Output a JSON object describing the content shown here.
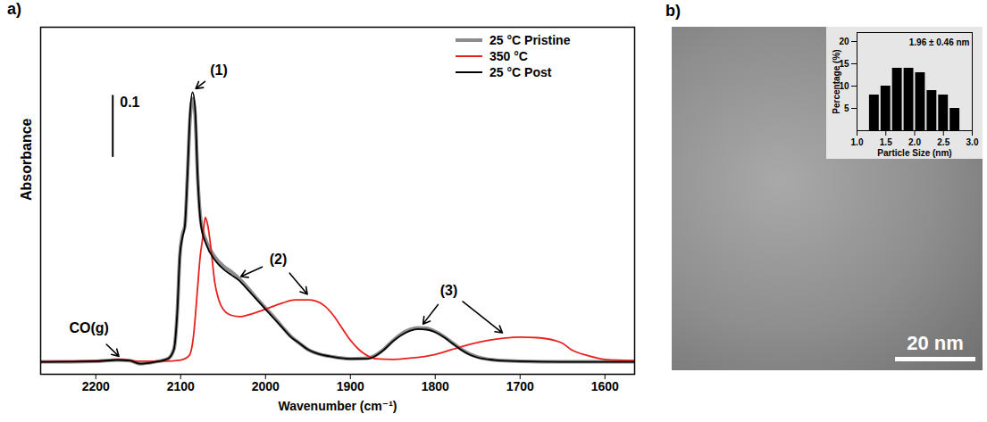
{
  "chart_data": [
    {
      "type": "line",
      "panel_label": "a)",
      "x_label": "Wavenumber (cm⁻¹)",
      "y_label": "Absorbance",
      "xlim": [
        2265,
        1565
      ],
      "xticks": [
        2200,
        2100,
        2000,
        1900,
        1800,
        1700,
        1600
      ],
      "ylim": [
        -0.02,
        0.54
      ],
      "yticks": [],
      "tick_labels": "x",
      "grid": false,
      "legend": "top-right",
      "series": [
        {
          "name": "25 °C Pristine",
          "color": "#8c8c8c",
          "x": [
            2265,
            2200,
            2175,
            2160,
            2148,
            2130,
            2115,
            2108,
            2104,
            2101,
            2098,
            2095,
            2092,
            2089,
            2086,
            2083,
            2080,
            2076,
            2070,
            2060,
            2050,
            2040,
            2030,
            2020,
            2010,
            2000,
            1990,
            1980,
            1970,
            1960,
            1950,
            1940,
            1920,
            1900,
            1880,
            1870,
            1860,
            1850,
            1840,
            1830,
            1820,
            1810,
            1800,
            1790,
            1780,
            1770,
            1760,
            1750,
            1730,
            1700,
            1650,
            1565
          ],
          "values": [
            0,
            0.001,
            0.003,
            0.002,
            -0.003,
            0,
            0.005,
            0.02,
            0.08,
            0.17,
            0.205,
            0.22,
            0.3,
            0.39,
            0.425,
            0.4,
            0.3,
            0.225,
            0.195,
            0.17,
            0.155,
            0.145,
            0.133,
            0.118,
            0.102,
            0.087,
            0.072,
            0.056,
            0.041,
            0.03,
            0.02,
            0.014,
            0.008,
            0.005,
            0.006,
            0.011,
            0.021,
            0.034,
            0.045,
            0.052,
            0.055,
            0.054,
            0.049,
            0.041,
            0.031,
            0.021,
            0.013,
            0.008,
            0.003,
            0.001,
            0,
            0
          ]
        },
        {
          "name": "350 °C",
          "color": "#e8201f",
          "x": [
            2265,
            2200,
            2180,
            2170,
            2150,
            2120,
            2100,
            2090,
            2085,
            2080,
            2077,
            2074,
            2071,
            2068,
            2064,
            2060,
            2055,
            2050,
            2040,
            2030,
            2020,
            2000,
            1980,
            1965,
            1950,
            1940,
            1930,
            1920,
            1910,
            1900,
            1890,
            1880,
            1870,
            1850,
            1830,
            1800,
            1780,
            1760,
            1740,
            1720,
            1700,
            1680,
            1660,
            1650,
            1640,
            1620,
            1600,
            1565
          ],
          "values": [
            0,
            0.002,
            0.003,
            0.004,
            0.001,
            0.001,
            0.003,
            0.01,
            0.04,
            0.12,
            0.17,
            0.2,
            0.233,
            0.22,
            0.18,
            0.13,
            0.1,
            0.085,
            0.075,
            0.073,
            0.076,
            0.085,
            0.095,
            0.1,
            0.1,
            0.098,
            0.09,
            0.075,
            0.055,
            0.035,
            0.02,
            0.01,
            0.005,
            0.004,
            0.006,
            0.012,
            0.02,
            0.028,
            0.034,
            0.038,
            0.04,
            0.039,
            0.035,
            0.03,
            0.02,
            0.01,
            0.004,
            0.002
          ]
        },
        {
          "name": "25 °C Post",
          "color": "#000000",
          "x": [
            2265,
            2200,
            2175,
            2160,
            2148,
            2130,
            2115,
            2108,
            2104,
            2101,
            2098,
            2095,
            2092,
            2089,
            2086,
            2083,
            2080,
            2076,
            2070,
            2060,
            2050,
            2040,
            2030,
            2020,
            2010,
            2000,
            1990,
            1980,
            1970,
            1960,
            1950,
            1940,
            1920,
            1900,
            1880,
            1870,
            1860,
            1850,
            1840,
            1830,
            1820,
            1810,
            1800,
            1790,
            1780,
            1770,
            1760,
            1750,
            1730,
            1700,
            1650,
            1565
          ],
          "values": [
            0,
            0.001,
            0.003,
            0.002,
            -0.003,
            0,
            0.005,
            0.02,
            0.08,
            0.17,
            0.2,
            0.22,
            0.3,
            0.4,
            0.435,
            0.41,
            0.3,
            0.22,
            0.19,
            0.165,
            0.15,
            0.14,
            0.13,
            0.115,
            0.1,
            0.085,
            0.07,
            0.055,
            0.04,
            0.03,
            0.02,
            0.014,
            0.008,
            0.005,
            0.005,
            0.01,
            0.02,
            0.033,
            0.043,
            0.05,
            0.053,
            0.052,
            0.048,
            0.04,
            0.03,
            0.02,
            0.012,
            0.007,
            0.003,
            0.001,
            0,
            0
          ]
        }
      ],
      "annotations": [
        {
          "text": "(1)",
          "x": 2055,
          "y": 0.47,
          "arrows": [
            {
              "x": 2083,
              "y": 0.44
            }
          ]
        },
        {
          "text": "(2)",
          "x": 1985,
          "y": 0.165,
          "arrows": [
            {
              "x": 2030,
              "y": 0.137
            },
            {
              "x": 1950,
              "y": 0.108
            }
          ]
        },
        {
          "text": "(3)",
          "x": 1784,
          "y": 0.115,
          "arrows": [
            {
              "x": 1815,
              "y": 0.06
            },
            {
              "x": 1720,
              "y": 0.046
            }
          ]
        },
        {
          "text": "CO(g)",
          "x": 2208,
          "y": 0.055,
          "arrows": [
            {
              "x": 2172,
              "y": 0.008
            }
          ]
        }
      ],
      "scale_bar": {
        "label": "0.1",
        "value": 0.1,
        "x": 2180,
        "y": 0.33
      }
    },
    {
      "type": "histogram",
      "panel_label": "b)",
      "title": "1.96 ± 0.46 nm",
      "x_label": "Particle Size (nm)",
      "y_label": "Percentage (%)",
      "bins": [
        1.2,
        1.4,
        1.6,
        1.8,
        2.0,
        2.2,
        2.4,
        2.6,
        2.8
      ],
      "values": [
        8,
        10,
        14,
        14,
        13,
        9,
        8,
        5
      ],
      "color": "#000000",
      "xlim": [
        1.0,
        3.0
      ],
      "xticks": [
        {
          "value": 1.0,
          "label": "1.0"
        },
        {
          "value": 1.5,
          "label": "1.5"
        },
        {
          "value": 2.0,
          "label": "2.0"
        },
        {
          "value": 2.5,
          "label": "2.5"
        },
        {
          "value": 3.0,
          "label": "3.0"
        }
      ],
      "ylim": [
        0,
        22
      ],
      "yticks": [
        5,
        10,
        15,
        20
      ],
      "grid": false,
      "scale_bar": {
        "label": "20 nm"
      }
    }
  ]
}
